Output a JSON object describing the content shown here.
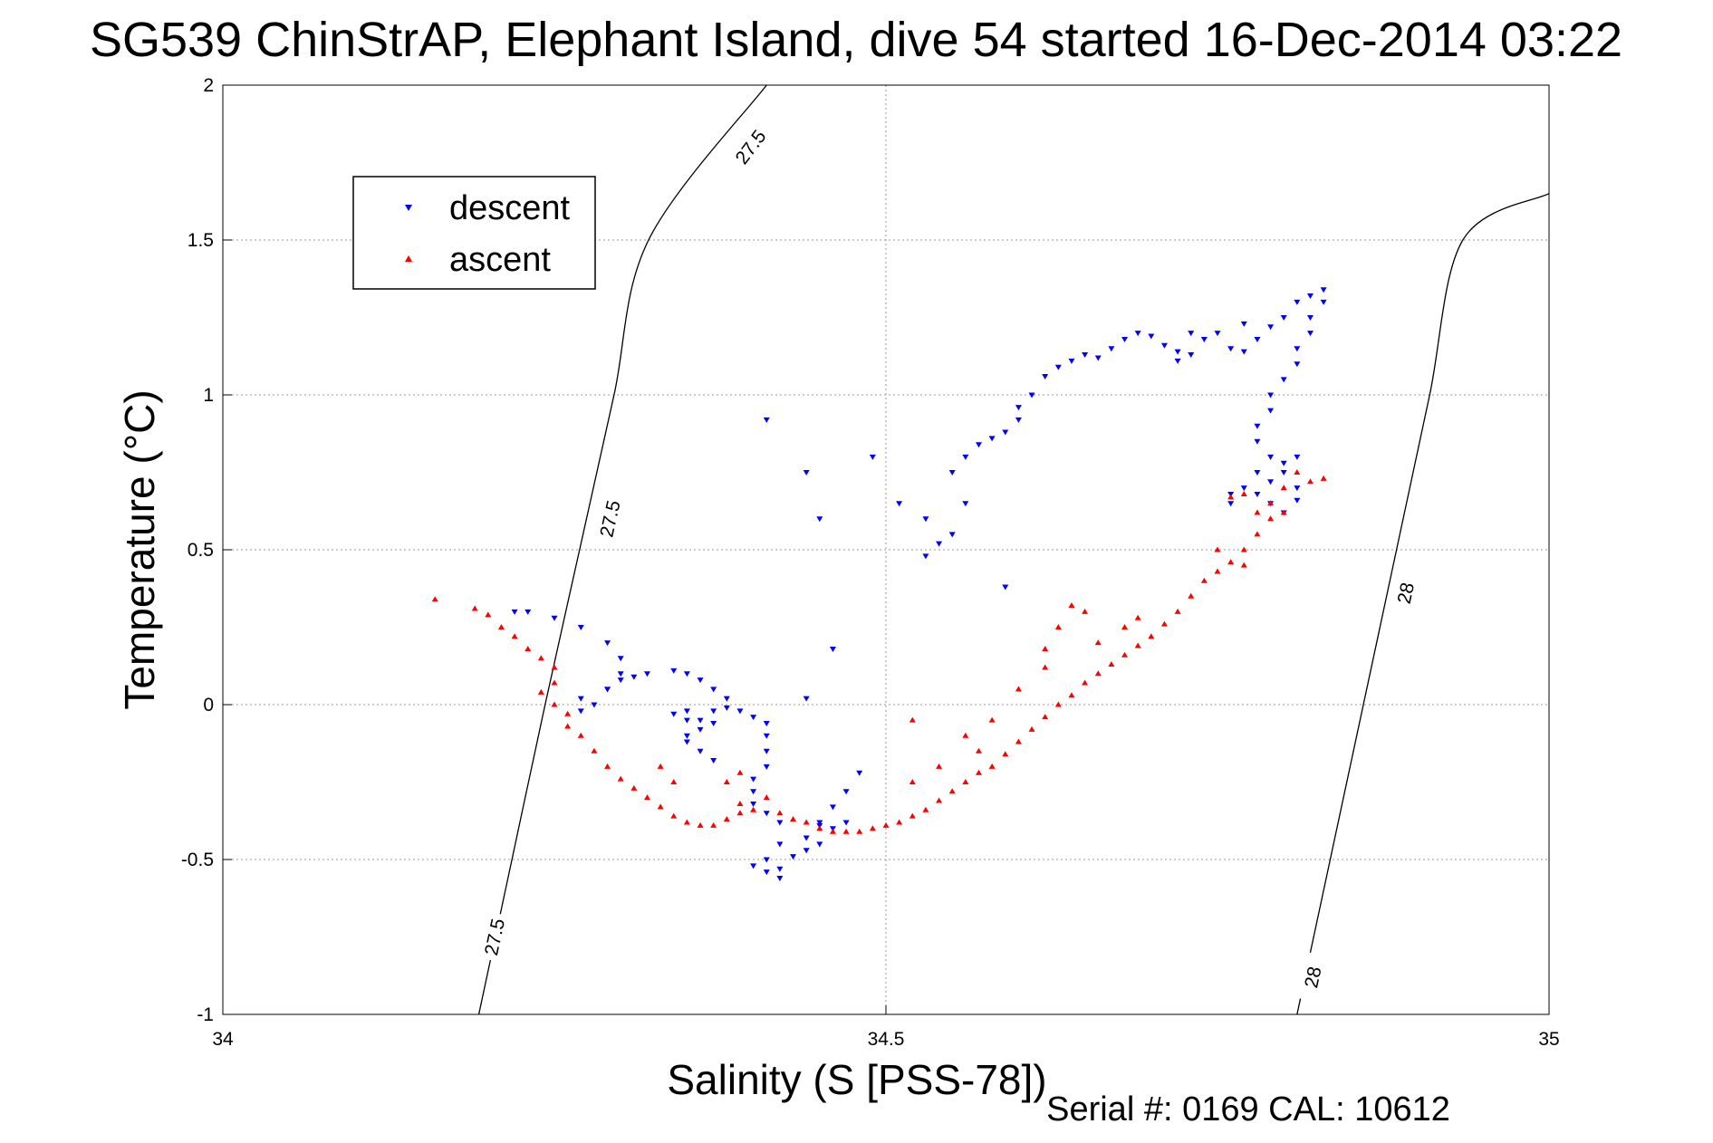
{
  "chart_data": {
    "type": "scatter",
    "title": "SG539 ChinStrAP, Elephant Island, dive 54 started 16-Dec-2014 03:22",
    "xlabel": "Salinity (S [PSS-78])",
    "ylabel": "Temperature (°C)",
    "xlim": [
      34,
      35
    ],
    "ylim": [
      -1,
      2
    ],
    "x_ticks": [
      34,
      34.5,
      35
    ],
    "y_ticks": [
      -1,
      -0.5,
      0,
      0.5,
      1,
      1.5,
      2
    ],
    "x_tick_labels": [
      "34",
      "34.5",
      "35"
    ],
    "y_tick_labels": [
      "-1",
      "-0.5",
      "0",
      "0.5",
      "1",
      "1.5",
      "2"
    ],
    "grid": true,
    "legend_position": "top-left",
    "series": [
      {
        "name": "descent",
        "color": "#0000ff",
        "marker": "triangle-down",
        "points": [
          [
            34.22,
            0.3
          ],
          [
            34.23,
            0.3
          ],
          [
            34.25,
            0.28
          ],
          [
            34.27,
            0.25
          ],
          [
            34.29,
            0.2
          ],
          [
            34.3,
            0.15
          ],
          [
            34.3,
            0.1
          ],
          [
            34.29,
            0.05
          ],
          [
            34.27,
            0.02
          ],
          [
            34.27,
            -0.02
          ],
          [
            34.28,
            0.0
          ],
          [
            34.29,
            0.05
          ],
          [
            34.3,
            0.08
          ],
          [
            34.31,
            0.09
          ],
          [
            34.32,
            0.1
          ],
          [
            34.34,
            0.11
          ],
          [
            34.35,
            0.1
          ],
          [
            34.36,
            0.08
          ],
          [
            34.37,
            0.05
          ],
          [
            34.38,
            0.02
          ],
          [
            34.37,
            -0.02
          ],
          [
            34.35,
            -0.05
          ],
          [
            34.34,
            -0.03
          ],
          [
            34.35,
            -0.02
          ],
          [
            34.36,
            -0.05
          ],
          [
            34.37,
            -0.06
          ],
          [
            34.36,
            -0.08
          ],
          [
            34.35,
            -0.1
          ],
          [
            34.35,
            -0.12
          ],
          [
            34.36,
            -0.15
          ],
          [
            34.37,
            -0.18
          ],
          [
            34.38,
            -0.01
          ],
          [
            34.39,
            -0.02
          ],
          [
            34.4,
            -0.04
          ],
          [
            34.41,
            -0.06
          ],
          [
            34.41,
            -0.1
          ],
          [
            34.41,
            -0.15
          ],
          [
            34.41,
            -0.2
          ],
          [
            34.4,
            -0.24
          ],
          [
            34.4,
            -0.28
          ],
          [
            34.4,
            -0.32
          ],
          [
            34.41,
            -0.35
          ],
          [
            34.42,
            -0.38
          ],
          [
            34.42,
            -0.45
          ],
          [
            34.41,
            -0.5
          ],
          [
            34.4,
            -0.52
          ],
          [
            34.41,
            -0.54
          ],
          [
            34.42,
            -0.56
          ],
          [
            34.42,
            -0.53
          ],
          [
            34.43,
            -0.49
          ],
          [
            34.44,
            -0.47
          ],
          [
            34.45,
            -0.45
          ],
          [
            34.44,
            -0.43
          ],
          [
            34.45,
            -0.38
          ],
          [
            34.46,
            -0.33
          ],
          [
            34.47,
            -0.28
          ],
          [
            34.48,
            -0.22
          ],
          [
            34.47,
            -0.38
          ],
          [
            34.46,
            -0.4
          ],
          [
            34.45,
            -0.39
          ],
          [
            34.44,
            0.02
          ],
          [
            34.46,
            0.18
          ],
          [
            34.41,
            0.92
          ],
          [
            34.44,
            0.75
          ],
          [
            34.45,
            0.6
          ],
          [
            34.49,
            0.8
          ],
          [
            34.51,
            0.65
          ],
          [
            34.53,
            0.6
          ],
          [
            34.53,
            0.48
          ],
          [
            34.54,
            0.52
          ],
          [
            34.55,
            0.55
          ],
          [
            34.56,
            0.65
          ],
          [
            34.55,
            0.75
          ],
          [
            34.56,
            0.8
          ],
          [
            34.57,
            0.84
          ],
          [
            34.58,
            0.86
          ],
          [
            34.59,
            0.88
          ],
          [
            34.6,
            0.92
          ],
          [
            34.6,
            0.96
          ],
          [
            34.61,
            1.0
          ],
          [
            34.62,
            1.06
          ],
          [
            34.63,
            1.09
          ],
          [
            34.64,
            1.11
          ],
          [
            34.65,
            1.13
          ],
          [
            34.66,
            1.12
          ],
          [
            34.67,
            1.15
          ],
          [
            34.68,
            1.18
          ],
          [
            34.69,
            1.2
          ],
          [
            34.7,
            1.19
          ],
          [
            34.71,
            1.16
          ],
          [
            34.72,
            1.14
          ],
          [
            34.72,
            1.11
          ],
          [
            34.73,
            1.13
          ],
          [
            34.74,
            1.18
          ],
          [
            34.75,
            1.2
          ],
          [
            34.76,
            1.15
          ],
          [
            34.77,
            1.14
          ],
          [
            34.78,
            1.18
          ],
          [
            34.79,
            1.22
          ],
          [
            34.8,
            1.25
          ],
          [
            34.81,
            1.3
          ],
          [
            34.82,
            1.32
          ],
          [
            34.83,
            1.34
          ],
          [
            34.83,
            1.3
          ],
          [
            34.82,
            1.25
          ],
          [
            34.82,
            1.2
          ],
          [
            34.81,
            1.15
          ],
          [
            34.81,
            1.1
          ],
          [
            34.8,
            1.05
          ],
          [
            34.79,
            1.0
          ],
          [
            34.79,
            0.95
          ],
          [
            34.78,
            0.9
          ],
          [
            34.78,
            0.85
          ],
          [
            34.79,
            0.8
          ],
          [
            34.8,
            0.78
          ],
          [
            34.81,
            0.8
          ],
          [
            34.8,
            0.75
          ],
          [
            34.79,
            0.72
          ],
          [
            34.78,
            0.68
          ],
          [
            34.79,
            0.65
          ],
          [
            34.8,
            0.62
          ],
          [
            34.81,
            0.7
          ],
          [
            34.78,
            0.75
          ],
          [
            34.77,
            0.7
          ],
          [
            34.76,
            0.68
          ],
          [
            34.81,
            0.66
          ],
          [
            34.76,
            0.65
          ],
          [
            34.77,
            1.23
          ],
          [
            34.73,
            1.2
          ],
          [
            34.59,
            0.38
          ]
        ]
      },
      {
        "name": "ascent",
        "color": "#ff0000",
        "marker": "triangle-up",
        "points": [
          [
            34.16,
            0.34
          ],
          [
            34.19,
            0.31
          ],
          [
            34.2,
            0.29
          ],
          [
            34.21,
            0.25
          ],
          [
            34.22,
            0.22
          ],
          [
            34.23,
            0.18
          ],
          [
            34.24,
            0.15
          ],
          [
            34.25,
            0.12
          ],
          [
            34.25,
            0.07
          ],
          [
            34.24,
            0.04
          ],
          [
            34.25,
            0.0
          ],
          [
            34.26,
            -0.03
          ],
          [
            34.26,
            -0.07
          ],
          [
            34.27,
            -0.1
          ],
          [
            34.28,
            -0.15
          ],
          [
            34.29,
            -0.2
          ],
          [
            34.3,
            -0.24
          ],
          [
            34.31,
            -0.27
          ],
          [
            34.32,
            -0.3
          ],
          [
            34.33,
            -0.33
          ],
          [
            34.34,
            -0.36
          ],
          [
            34.35,
            -0.38
          ],
          [
            34.36,
            -0.39
          ],
          [
            34.37,
            -0.39
          ],
          [
            34.38,
            -0.37
          ],
          [
            34.39,
            -0.35
          ],
          [
            34.4,
            -0.34
          ],
          [
            34.39,
            -0.32
          ],
          [
            34.38,
            -0.25
          ],
          [
            34.39,
            -0.22
          ],
          [
            34.41,
            -0.3
          ],
          [
            34.42,
            -0.35
          ],
          [
            34.43,
            -0.37
          ],
          [
            34.44,
            -0.38
          ],
          [
            34.45,
            -0.4
          ],
          [
            34.46,
            -0.41
          ],
          [
            34.47,
            -0.41
          ],
          [
            34.48,
            -0.41
          ],
          [
            34.49,
            -0.4
          ],
          [
            34.5,
            -0.39
          ],
          [
            34.51,
            -0.38
          ],
          [
            34.52,
            -0.36
          ],
          [
            34.53,
            -0.34
          ],
          [
            34.54,
            -0.31
          ],
          [
            34.55,
            -0.28
          ],
          [
            34.56,
            -0.25
          ],
          [
            34.57,
            -0.22
          ],
          [
            34.58,
            -0.2
          ],
          [
            34.59,
            -0.16
          ],
          [
            34.6,
            -0.12
          ],
          [
            34.61,
            -0.08
          ],
          [
            34.62,
            -0.04
          ],
          [
            34.63,
            0.0
          ],
          [
            34.64,
            0.03
          ],
          [
            34.65,
            0.07
          ],
          [
            34.66,
            0.1
          ],
          [
            34.67,
            0.13
          ],
          [
            34.68,
            0.16
          ],
          [
            34.69,
            0.19
          ],
          [
            34.7,
            0.22
          ],
          [
            34.71,
            0.26
          ],
          [
            34.72,
            0.3
          ],
          [
            34.73,
            0.35
          ],
          [
            34.74,
            0.4
          ],
          [
            34.75,
            0.43
          ],
          [
            34.76,
            0.46
          ],
          [
            34.77,
            0.5
          ],
          [
            34.78,
            0.55
          ],
          [
            34.79,
            0.6
          ],
          [
            34.79,
            0.65
          ],
          [
            34.8,
            0.7
          ],
          [
            34.81,
            0.75
          ],
          [
            34.82,
            0.72
          ],
          [
            34.78,
            0.62
          ],
          [
            34.77,
            0.68
          ],
          [
            34.76,
            0.67
          ],
          [
            34.8,
            0.62
          ],
          [
            34.83,
            0.73
          ],
          [
            34.77,
            0.45
          ],
          [
            34.75,
            0.5
          ],
          [
            34.64,
            0.32
          ],
          [
            34.65,
            0.3
          ],
          [
            34.63,
            0.25
          ],
          [
            34.62,
            0.18
          ],
          [
            34.6,
            0.05
          ],
          [
            34.58,
            -0.05
          ],
          [
            34.56,
            -0.1
          ],
          [
            34.57,
            -0.15
          ],
          [
            34.52,
            -0.05
          ],
          [
            34.52,
            -0.25
          ],
          [
            34.54,
            -0.2
          ],
          [
            34.62,
            0.12
          ],
          [
            34.66,
            0.2
          ],
          [
            34.68,
            0.25
          ],
          [
            34.69,
            0.28
          ],
          [
            34.33,
            -0.2
          ],
          [
            34.34,
            -0.25
          ]
        ]
      }
    ],
    "contours": [
      {
        "label": "27.5",
        "color": "#000000",
        "points": [
          [
            34.193,
            -1
          ],
          [
            34.218,
            -0.5
          ],
          [
            34.243,
            0
          ],
          [
            34.269,
            0.5
          ],
          [
            34.295,
            1
          ],
          [
            34.321,
            1.5
          ],
          [
            34.41,
            2
          ]
        ],
        "labels_at": [
          [
            34.205,
            -0.75
          ],
          [
            34.292,
            0.6
          ],
          [
            34.398,
            1.8
          ]
        ]
      },
      {
        "label": "28",
        "color": "#000000",
        "points": [
          [
            34.81,
            -1
          ],
          [
            34.835,
            -0.5
          ],
          [
            34.86,
            0
          ],
          [
            34.885,
            0.5
          ],
          [
            34.91,
            1
          ],
          [
            34.935,
            1.5
          ],
          [
            35.0,
            1.65
          ]
        ],
        "labels_at": [
          [
            34.822,
            -0.88
          ],
          [
            34.892,
            0.36
          ]
        ]
      }
    ],
    "footer_text": "Serial #: 0169 CAL: 10612"
  }
}
